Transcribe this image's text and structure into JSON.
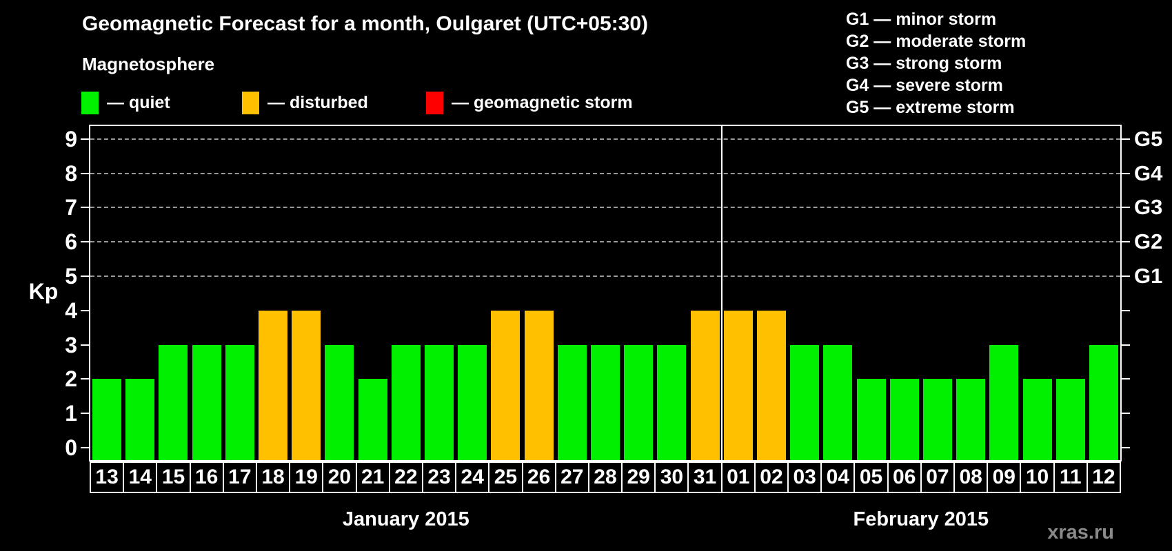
{
  "title": "Geomagnetic Forecast for a month, Oulgaret (UTC+05:30)",
  "watermark": "xras.ru",
  "legend": {
    "title": "Magnetosphere",
    "items": [
      {
        "key": "quiet",
        "label": "— quiet",
        "color": "#00f000"
      },
      {
        "key": "disturbed",
        "label": "— disturbed",
        "color": "#ffc000"
      },
      {
        "key": "storm",
        "label": "— geomagnetic storm",
        "color": "#ff0000"
      }
    ]
  },
  "g_scale_legend": [
    "G1 — minor storm",
    "G2 — moderate storm",
    "G3 — strong storm",
    "G4 — severe storm",
    "G5 — extreme storm"
  ],
  "chart_data": {
    "type": "bar",
    "title": "Geomagnetic Forecast for a month, Oulgaret (UTC+05:30)",
    "ylabel": "Kp",
    "ylim": [
      0,
      9
    ],
    "y_ticks": [
      0,
      1,
      2,
      3,
      4,
      5,
      6,
      7,
      8,
      9
    ],
    "grid_levels": [
      5,
      6,
      7,
      8,
      9
    ],
    "grid_style": "dashed",
    "right_axis_labels": [
      {
        "label": "G1",
        "kp": 5
      },
      {
        "label": "G2",
        "kp": 6
      },
      {
        "label": "G3",
        "kp": 7
      },
      {
        "label": "G4",
        "kp": 8
      },
      {
        "label": "G5",
        "kp": 9
      }
    ],
    "status_colors": {
      "quiet": "#00f000",
      "disturbed": "#ffc000",
      "storm": "#ff0000"
    },
    "months": [
      {
        "label": "January 2015",
        "days": 19
      },
      {
        "label": "February 2015",
        "days": 12
      }
    ],
    "bars": [
      {
        "day": "13",
        "kp": 2,
        "status": "quiet"
      },
      {
        "day": "14",
        "kp": 2,
        "status": "quiet"
      },
      {
        "day": "15",
        "kp": 3,
        "status": "quiet"
      },
      {
        "day": "16",
        "kp": 3,
        "status": "quiet"
      },
      {
        "day": "17",
        "kp": 3,
        "status": "quiet"
      },
      {
        "day": "18",
        "kp": 4,
        "status": "disturbed"
      },
      {
        "day": "19",
        "kp": 4,
        "status": "disturbed"
      },
      {
        "day": "20",
        "kp": 3,
        "status": "quiet"
      },
      {
        "day": "21",
        "kp": 2,
        "status": "quiet"
      },
      {
        "day": "22",
        "kp": 3,
        "status": "quiet"
      },
      {
        "day": "23",
        "kp": 3,
        "status": "quiet"
      },
      {
        "day": "24",
        "kp": 3,
        "status": "quiet"
      },
      {
        "day": "25",
        "kp": 4,
        "status": "disturbed"
      },
      {
        "day": "26",
        "kp": 4,
        "status": "disturbed"
      },
      {
        "day": "27",
        "kp": 3,
        "status": "quiet"
      },
      {
        "day": "28",
        "kp": 3,
        "status": "quiet"
      },
      {
        "day": "29",
        "kp": 3,
        "status": "quiet"
      },
      {
        "day": "30",
        "kp": 3,
        "status": "quiet"
      },
      {
        "day": "31",
        "kp": 4,
        "status": "disturbed"
      },
      {
        "day": "01",
        "kp": 4,
        "status": "disturbed"
      },
      {
        "day": "02",
        "kp": 4,
        "status": "disturbed"
      },
      {
        "day": "03",
        "kp": 3,
        "status": "quiet"
      },
      {
        "day": "04",
        "kp": 3,
        "status": "quiet"
      },
      {
        "day": "05",
        "kp": 2,
        "status": "quiet"
      },
      {
        "day": "06",
        "kp": 2,
        "status": "quiet"
      },
      {
        "day": "07",
        "kp": 2,
        "status": "quiet"
      },
      {
        "day": "08",
        "kp": 2,
        "status": "quiet"
      },
      {
        "day": "09",
        "kp": 3,
        "status": "quiet"
      },
      {
        "day": "10",
        "kp": 2,
        "status": "quiet"
      },
      {
        "day": "11",
        "kp": 2,
        "status": "quiet"
      },
      {
        "day": "12",
        "kp": 3,
        "status": "quiet"
      }
    ]
  }
}
